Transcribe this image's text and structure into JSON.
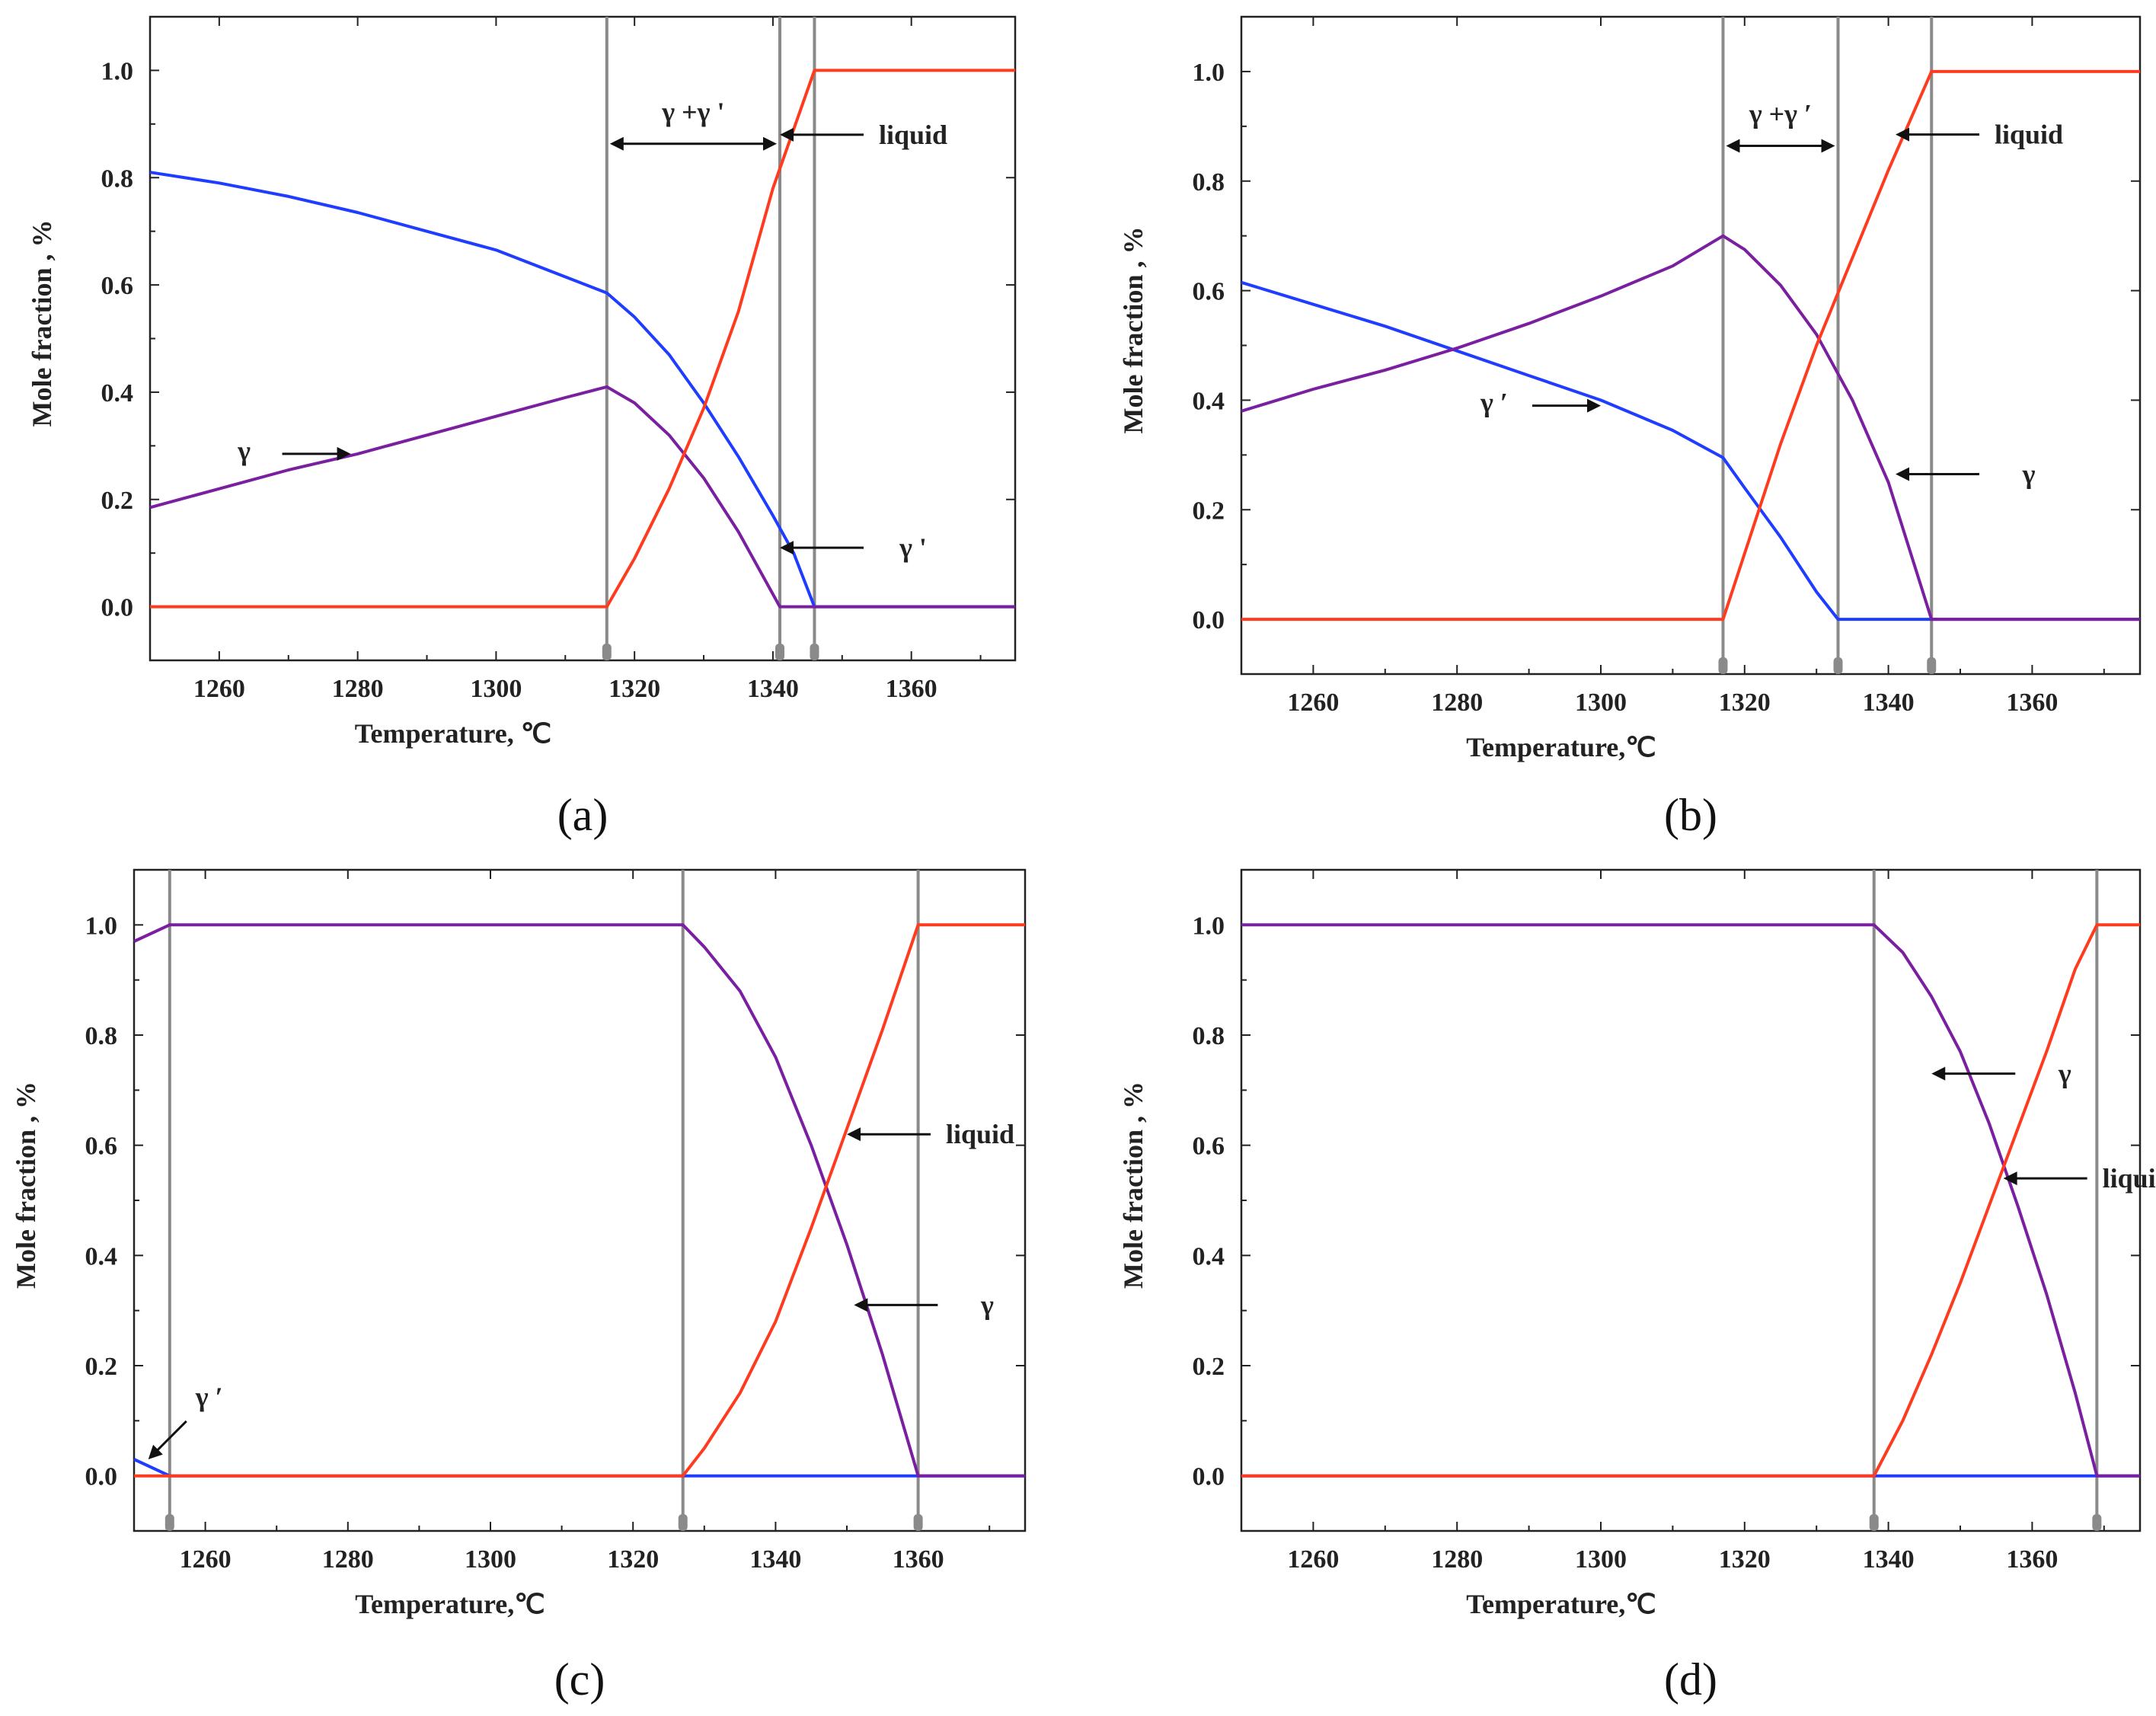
{
  "chart_data": [
    {
      "type": "line",
      "panel_label": "(a)",
      "xlabel": "Temperature, ℃",
      "ylabel": "Mole fraction , %",
      "xlim": [
        1250,
        1375
      ],
      "ylim": [
        -0.1,
        1.1
      ],
      "xticks": [
        1260,
        1280,
        1300,
        1320,
        1340,
        1360
      ],
      "yticks": [
        0.0,
        0.2,
        0.4,
        0.6,
        0.8,
        1.0
      ],
      "series": [
        {
          "name": "γ ′ (blue)",
          "color": "#1f3dff",
          "x": [
            1250,
            1260,
            1270,
            1280,
            1290,
            1300,
            1310,
            1316,
            1320,
            1325,
            1330,
            1335,
            1340,
            1343,
            1346,
            1375
          ],
          "y": [
            0.81,
            0.79,
            0.765,
            0.735,
            0.7,
            0.665,
            0.615,
            0.585,
            0.54,
            0.47,
            0.38,
            0.28,
            0.17,
            0.1,
            0.0,
            0.0
          ]
        },
        {
          "name": "γ (purple)",
          "color": "#7a1fa0",
          "x": [
            1250,
            1260,
            1270,
            1280,
            1290,
            1300,
            1310,
            1316,
            1320,
            1325,
            1330,
            1335,
            1341,
            1375
          ],
          "y": [
            0.185,
            0.22,
            0.255,
            0.285,
            0.32,
            0.355,
            0.39,
            0.41,
            0.38,
            0.32,
            0.24,
            0.14,
            0.0,
            0.0
          ]
        },
        {
          "name": "liquid (orange)",
          "color": "#ff3b1f",
          "x": [
            1250,
            1316,
            1320,
            1325,
            1330,
            1335,
            1340,
            1346,
            1375
          ],
          "y": [
            0.0,
            0.0,
            0.09,
            0.22,
            0.37,
            0.55,
            0.78,
            1.0,
            1.0
          ]
        }
      ],
      "vlines": [
        1316,
        1341,
        1346
      ],
      "region_label": {
        "text": "γ +γ '",
        "from": 1316,
        "to": 1341,
        "y": 0.92
      },
      "annotations": [
        {
          "text": "liquid",
          "x": 1341,
          "y": 0.88,
          "dir": "left"
        },
        {
          "text": "γ '",
          "x": 1341,
          "y": 0.11,
          "dir": "left"
        },
        {
          "text": "γ",
          "x": 1279,
          "y": 0.285,
          "dir": "right"
        }
      ]
    },
    {
      "type": "line",
      "panel_label": "(b)",
      "xlabel": "Temperature,℃",
      "ylabel": "Mole fraction , %",
      "xlim": [
        1250,
        1375
      ],
      "ylim": [
        -0.1,
        1.1
      ],
      "xticks": [
        1260,
        1280,
        1300,
        1320,
        1340,
        1360
      ],
      "yticks": [
        0.0,
        0.2,
        0.4,
        0.6,
        0.8,
        1.0
      ],
      "series": [
        {
          "name": "γ ′ (blue)",
          "color": "#1f3dff",
          "x": [
            1250,
            1260,
            1270,
            1280,
            1290,
            1300,
            1310,
            1317,
            1320,
            1325,
            1330,
            1333,
            1375
          ],
          "y": [
            0.615,
            0.575,
            0.535,
            0.49,
            0.445,
            0.4,
            0.345,
            0.295,
            0.24,
            0.15,
            0.05,
            0.0,
            0.0
          ]
        },
        {
          "name": "γ (purple)",
          "color": "#7a1fa0",
          "x": [
            1250,
            1260,
            1270,
            1280,
            1290,
            1300,
            1310,
            1317,
            1320,
            1325,
            1330,
            1335,
            1340,
            1346,
            1375
          ],
          "y": [
            0.38,
            0.42,
            0.455,
            0.495,
            0.54,
            0.59,
            0.645,
            0.7,
            0.675,
            0.61,
            0.52,
            0.4,
            0.25,
            0.0,
            0.0
          ]
        },
        {
          "name": "liquid (orange)",
          "color": "#ff3b1f",
          "x": [
            1250,
            1317,
            1320,
            1325,
            1330,
            1335,
            1340,
            1346,
            1375
          ],
          "y": [
            0.0,
            0.0,
            0.12,
            0.32,
            0.5,
            0.66,
            0.82,
            1.0,
            1.0
          ]
        }
      ],
      "vlines": [
        1317,
        1333,
        1346
      ],
      "region_label": {
        "text": "γ +γ ′",
        "from": 1317,
        "to": 1333,
        "y": 0.92
      },
      "annotations": [
        {
          "text": "liquid",
          "x": 1341,
          "y": 0.885,
          "dir": "left"
        },
        {
          "text": "γ ′",
          "x": 1300,
          "y": 0.39,
          "dir": "right"
        },
        {
          "text": "γ",
          "x": 1341,
          "y": 0.265,
          "dir": "left"
        }
      ]
    },
    {
      "type": "line",
      "panel_label": "(c)",
      "xlabel": "Temperature,℃",
      "ylabel": "Mole fraction , %",
      "xlim": [
        1250,
        1375
      ],
      "ylim": [
        -0.1,
        1.1
      ],
      "xticks": [
        1260,
        1280,
        1300,
        1320,
        1340,
        1360
      ],
      "yticks": [
        0.0,
        0.2,
        0.4,
        0.6,
        0.8,
        1.0
      ],
      "series": [
        {
          "name": "γ ′ (blue)",
          "color": "#1f3dff",
          "x": [
            1250,
            1255,
            1327,
            1360,
            1375
          ],
          "y": [
            0.03,
            0.0,
            0.0,
            0.0,
            0.0
          ]
        },
        {
          "name": "γ (purple)",
          "color": "#7a1fa0",
          "x": [
            1250,
            1255,
            1327,
            1330,
            1335,
            1340,
            1345,
            1350,
            1355,
            1360,
            1375
          ],
          "y": [
            0.97,
            1.0,
            1.0,
            0.96,
            0.88,
            0.76,
            0.6,
            0.42,
            0.22,
            0.0,
            0.0
          ]
        },
        {
          "name": "liquid (orange)",
          "color": "#ff3b1f",
          "x": [
            1250,
            1327,
            1330,
            1335,
            1340,
            1345,
            1350,
            1355,
            1360,
            1375
          ],
          "y": [
            0.0,
            0.0,
            0.05,
            0.15,
            0.28,
            0.45,
            0.63,
            0.81,
            1.0,
            1.0
          ]
        }
      ],
      "vlines": [
        1255,
        1327,
        1360
      ],
      "region_label": null,
      "annotations": [
        {
          "text": "liquid",
          "x": 1350,
          "y": 0.62,
          "dir": "left"
        },
        {
          "text": "γ",
          "x": 1351,
          "y": 0.31,
          "dir": "left"
        },
        {
          "text": "γ ′",
          "x": 1252,
          "y": 0.03,
          "dir": "downleft"
        }
      ]
    },
    {
      "type": "line",
      "panel_label": "(d)",
      "xlabel": "Temperature,℃",
      "ylabel": "Mole fraction , %",
      "xlim": [
        1250,
        1375
      ],
      "ylim": [
        -0.1,
        1.1
      ],
      "xticks": [
        1260,
        1280,
        1300,
        1320,
        1340,
        1360
      ],
      "yticks": [
        0.0,
        0.2,
        0.4,
        0.6,
        0.8,
        1.0
      ],
      "series": [
        {
          "name": "γ ′ (blue)",
          "color": "#1f3dff",
          "x": [
            1250,
            1338,
            1369,
            1375
          ],
          "y": [
            0.0,
            0.0,
            0.0,
            0.0
          ]
        },
        {
          "name": "γ (purple)",
          "color": "#7a1fa0",
          "x": [
            1250,
            1338,
            1342,
            1346,
            1350,
            1354,
            1358,
            1362,
            1366,
            1369,
            1375
          ],
          "y": [
            1.0,
            1.0,
            0.95,
            0.87,
            0.77,
            0.64,
            0.49,
            0.33,
            0.15,
            0.0,
            0.0
          ]
        },
        {
          "name": "liquid (orange)",
          "color": "#ff3b1f",
          "x": [
            1250,
            1338,
            1342,
            1346,
            1350,
            1354,
            1358,
            1362,
            1366,
            1369,
            1375
          ],
          "y": [
            0.0,
            0.0,
            0.1,
            0.22,
            0.35,
            0.49,
            0.63,
            0.77,
            0.92,
            1.0,
            1.0
          ]
        }
      ],
      "vlines": [
        1338,
        1369
      ],
      "region_label": null,
      "annotations": [
        {
          "text": "γ",
          "x": 1346,
          "y": 0.73,
          "dir": "left"
        },
        {
          "text": "liquid",
          "x": 1356,
          "y": 0.54,
          "dir": "left"
        }
      ]
    }
  ]
}
